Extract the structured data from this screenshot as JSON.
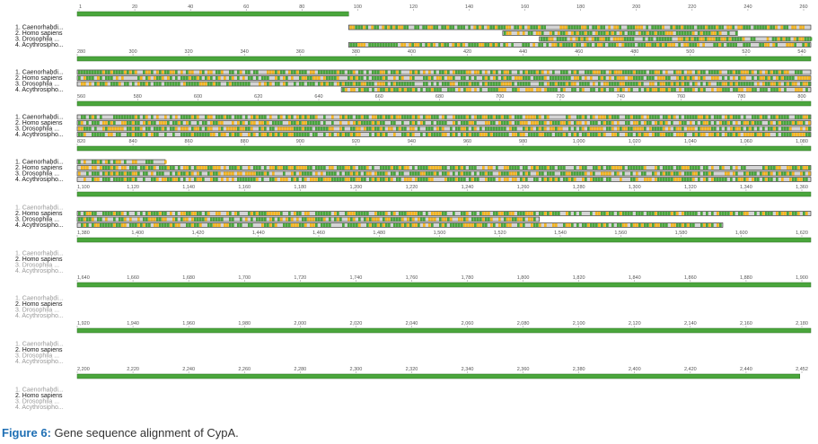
{
  "sequences": [
    "1. Caenorhabdi...",
    "2. Homo sapiens",
    "3. Drosophila ...",
    "4. Acythrosipho..."
  ],
  "blocks": [
    {
      "ticks": [
        "1",
        "20",
        "40",
        "60",
        "80",
        "100",
        "120",
        "140",
        "160",
        "180",
        "200",
        "220",
        "240",
        "260"
      ],
      "tracks": [
        {
          "state": "full",
          "consensus": [
            0,
            1
          ],
          "overview": false
        },
        {
          "state": "partial",
          "segments": [
            [
              0.65,
              1
            ]
          ]
        },
        {
          "state": "partial",
          "segments": [
            [
              0.7,
              1
            ]
          ]
        },
        {
          "state": "partial",
          "segments": [
            [
              0,
              0.35
            ]
          ]
        },
        {
          "state": "partial",
          "segments": [
            [
              0.35,
              1
            ]
          ]
        }
      ]
    },
    {
      "ticks": [
        "280",
        "300",
        "320",
        "340",
        "360",
        "380",
        "400",
        "420",
        "440",
        "460",
        "480",
        "500",
        "520",
        "540"
      ],
      "tracks": [
        {
          "state": "full",
          "consensus": [
            0,
            1
          ]
        },
        {
          "state": "partial",
          "segments": [
            [
              0.36,
              1
            ]
          ]
        },
        {
          "state": "partial",
          "segments": [
            [
              0.36,
              1
            ]
          ]
        },
        {
          "state": "partial",
          "segments": [
            [
              0.36,
              1
            ]
          ]
        },
        {
          "state": "partial",
          "segments": [
            [
              0.36,
              1
            ]
          ]
        }
      ]
    },
    {
      "ticks": [
        "560",
        "580",
        "600",
        "620",
        "640",
        "660",
        "680",
        "700",
        "720",
        "740",
        "760",
        "780",
        "800"
      ],
      "tracks": []
    },
    {
      "ticks": [
        "820",
        "840",
        "860",
        "880",
        "900",
        "920",
        "940",
        "960",
        "980",
        "1,000",
        "1,020",
        "1,040",
        "1,060",
        "1,080"
      ],
      "tracks": []
    },
    {
      "ticks": [
        "1,100",
        "1,120",
        "1,140",
        "1,160",
        "1,180",
        "1,200",
        "1,220",
        "1,240",
        "1,260",
        "1,280",
        "1,300",
        "1,320",
        "1,340",
        "1,360"
      ],
      "tracks": []
    },
    {
      "ticks": [
        "1,380",
        "1,400",
        "1,420",
        "1,440",
        "1,460",
        "1,480",
        "1,500",
        "1,520",
        "1,540",
        "1,560",
        "1,580",
        "1,600",
        "1,620"
      ],
      "tracks": []
    },
    {
      "ticks": [
        "1,640",
        "1,660",
        "1,680",
        "1,700",
        "1,720",
        "1,740",
        "1,760",
        "1,780",
        "1,800",
        "1,820",
        "1,840",
        "1,860",
        "1,880",
        "1,900"
      ],
      "tracks": []
    },
    {
      "ticks": [
        "1,920",
        "1,940",
        "1,960",
        "1,980",
        "2,000",
        "2,020",
        "2,040",
        "2,060",
        "2,080",
        "2,100",
        "2,120",
        "2,140",
        "2,160",
        "2,180"
      ],
      "tracks": []
    },
    {
      "ticks": [
        "2,200",
        "2,220",
        "2,240",
        "2,260",
        "2,280",
        "2,300",
        "2,320",
        "2,340",
        "2,360",
        "2,380",
        "2,400",
        "2,420",
        "2,440",
        "2,452"
      ],
      "tracks": []
    }
  ],
  "colors": {
    "identical": "#4aa63c",
    "similar": "#f2b522",
    "gap": "#d4d4d4",
    "consensus": "#4aa63c",
    "label_active": "#1a1a1a",
    "label_dim": "#9a9a9a",
    "caption_accent": "#1f6fb4"
  },
  "caption": {
    "figure_label": "Figure 6:",
    "text": " Gene sequence alignment of CypA."
  }
}
